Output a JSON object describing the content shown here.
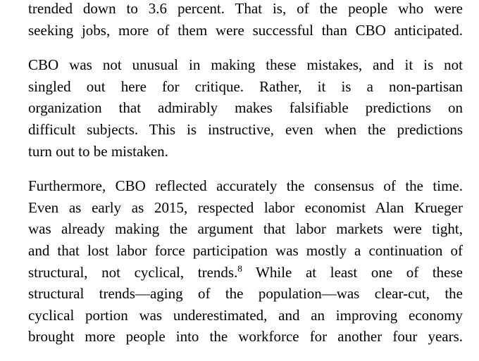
{
  "paragraphs": [
    [
      "trended down to 3.6 percent. That is, of the people who were",
      "seeking jobs, more of them were successful than CBO anticipated."
    ],
    [
      "CBO was not unusual in making these mistakes, and it is not",
      "singled out here for critique. Rather, it is a non-partisan",
      "organization that admirably makes falsifiable predictions on",
      "difficult subjects. This is instructive, even when the predictions",
      "turn out to be mistaken."
    ],
    [
      "Furthermore, CBO reflected accurately the consensus of the time.",
      "Even as early as 2015, respected labor economist Alan Krueger",
      "was already making the argument that labor markets were tight,",
      "and that lost labor force participation was mostly a continuation of",
      {
        "before": "structural, not cyclical, trends.",
        "footnote": "8",
        "after": " While at least one of these"
      },
      "structural trends—aging of the population—was clear-cut, the",
      "cyclical portion was underestimated, and an improving economy",
      "brought more people into the workforce for another four years."
    ]
  ]
}
